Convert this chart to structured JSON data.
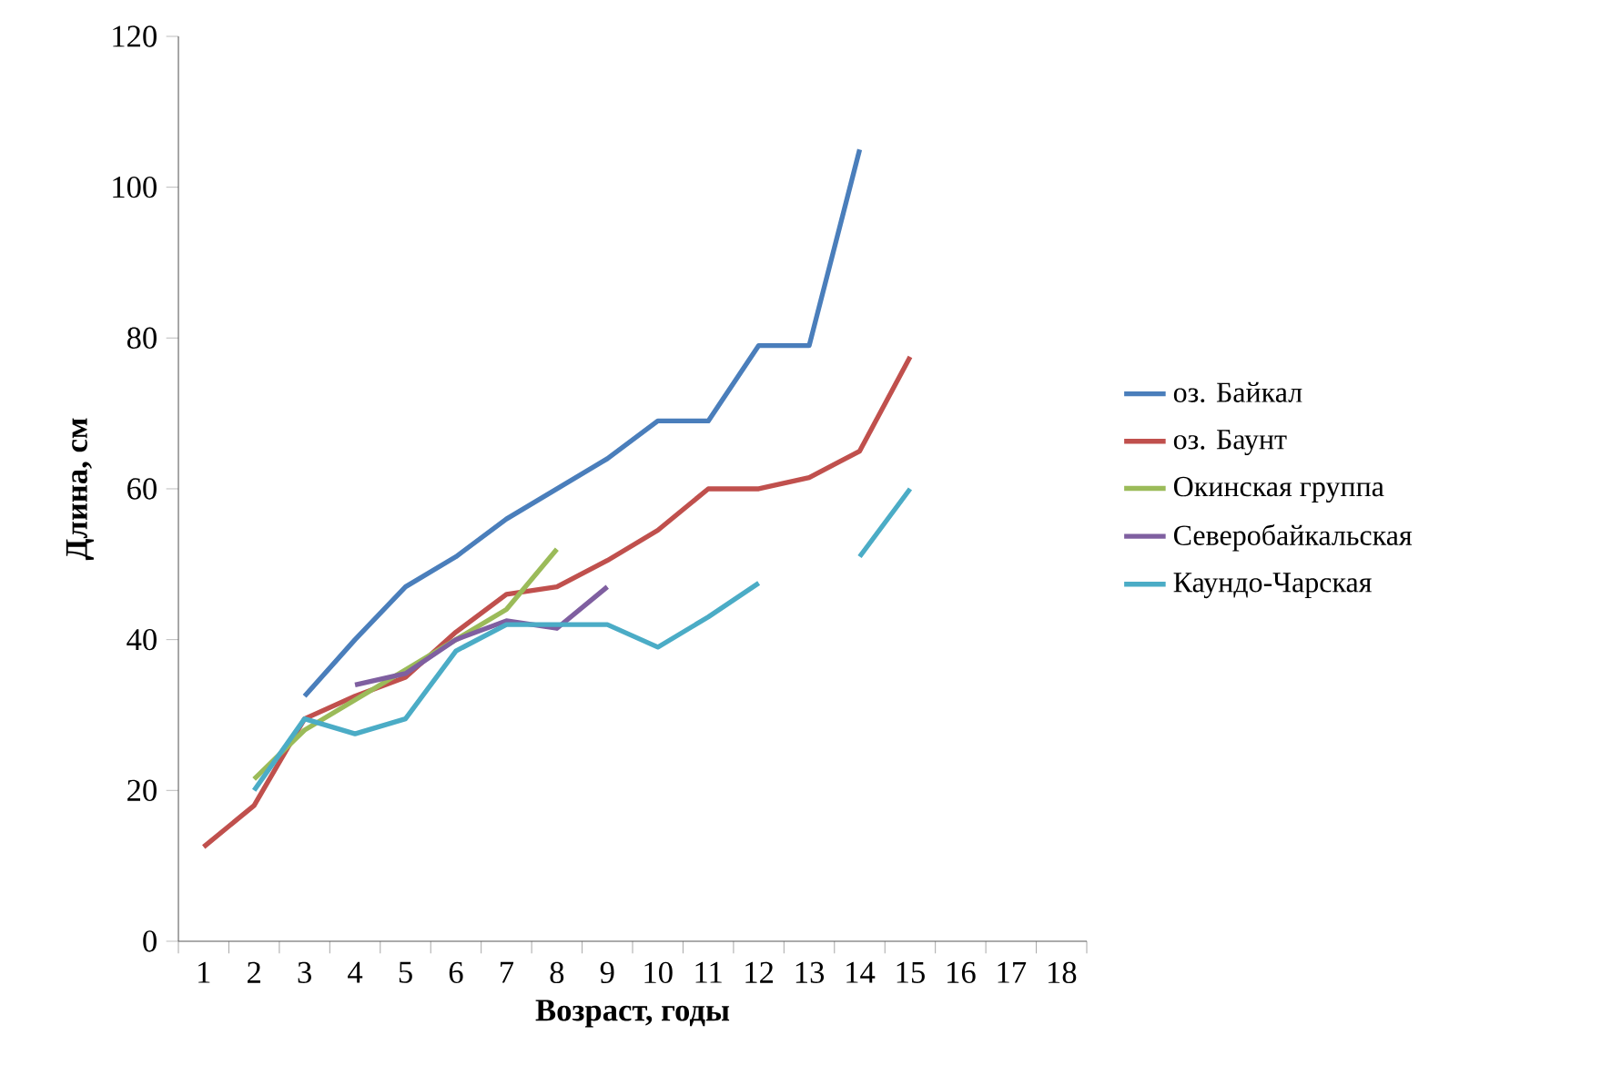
{
  "chart_data": {
    "type": "line",
    "xlabel": "Возраст, годы",
    "ylabel": "Длина, см",
    "categories": [
      "1",
      "2",
      "3",
      "4",
      "5",
      "6",
      "7",
      "8",
      "9",
      "10",
      "11",
      "12",
      "13",
      "14",
      "15",
      "16",
      "17",
      "18"
    ],
    "series": [
      {
        "name": "оз. Байкал",
        "color": "#4a7ebb",
        "values": [
          null,
          null,
          32.5,
          40,
          47,
          51,
          56,
          60,
          64,
          69,
          69,
          79,
          79,
          105,
          null,
          null,
          null,
          null
        ]
      },
      {
        "name": "оз. Баунт",
        "color": "#c0504d",
        "values": [
          12.5,
          18,
          29.5,
          32.5,
          35,
          41,
          46,
          47,
          50.5,
          54.5,
          60,
          60,
          61.5,
          65,
          77.5,
          null,
          null,
          null
        ]
      },
      {
        "name": "Окинская группа",
        "color": "#9bbb59",
        "values": [
          null,
          21.5,
          28,
          32,
          36,
          40,
          44,
          52,
          null,
          null,
          null,
          null,
          null,
          null,
          null,
          null,
          null,
          null
        ]
      },
      {
        "name": "Северобайкальская",
        "color": "#7f5fa0",
        "values": [
          null,
          null,
          null,
          34,
          35.5,
          40,
          42.5,
          41.5,
          47,
          null,
          null,
          null,
          null,
          null,
          null,
          null,
          null,
          null
        ]
      },
      {
        "name": "Каундо-Чарская",
        "color": "#4bacc6",
        "values": [
          null,
          20,
          29.5,
          27.5,
          29.5,
          38.5,
          42,
          42,
          42,
          39,
          43,
          47.5,
          null,
          51,
          60,
          null,
          null,
          null
        ]
      }
    ],
    "ylim": [
      0,
      120
    ],
    "yticks": [
      0,
      20,
      40,
      60,
      80,
      100,
      120
    ],
    "legend": "right",
    "marker": "none",
    "line_style": "solid"
  }
}
